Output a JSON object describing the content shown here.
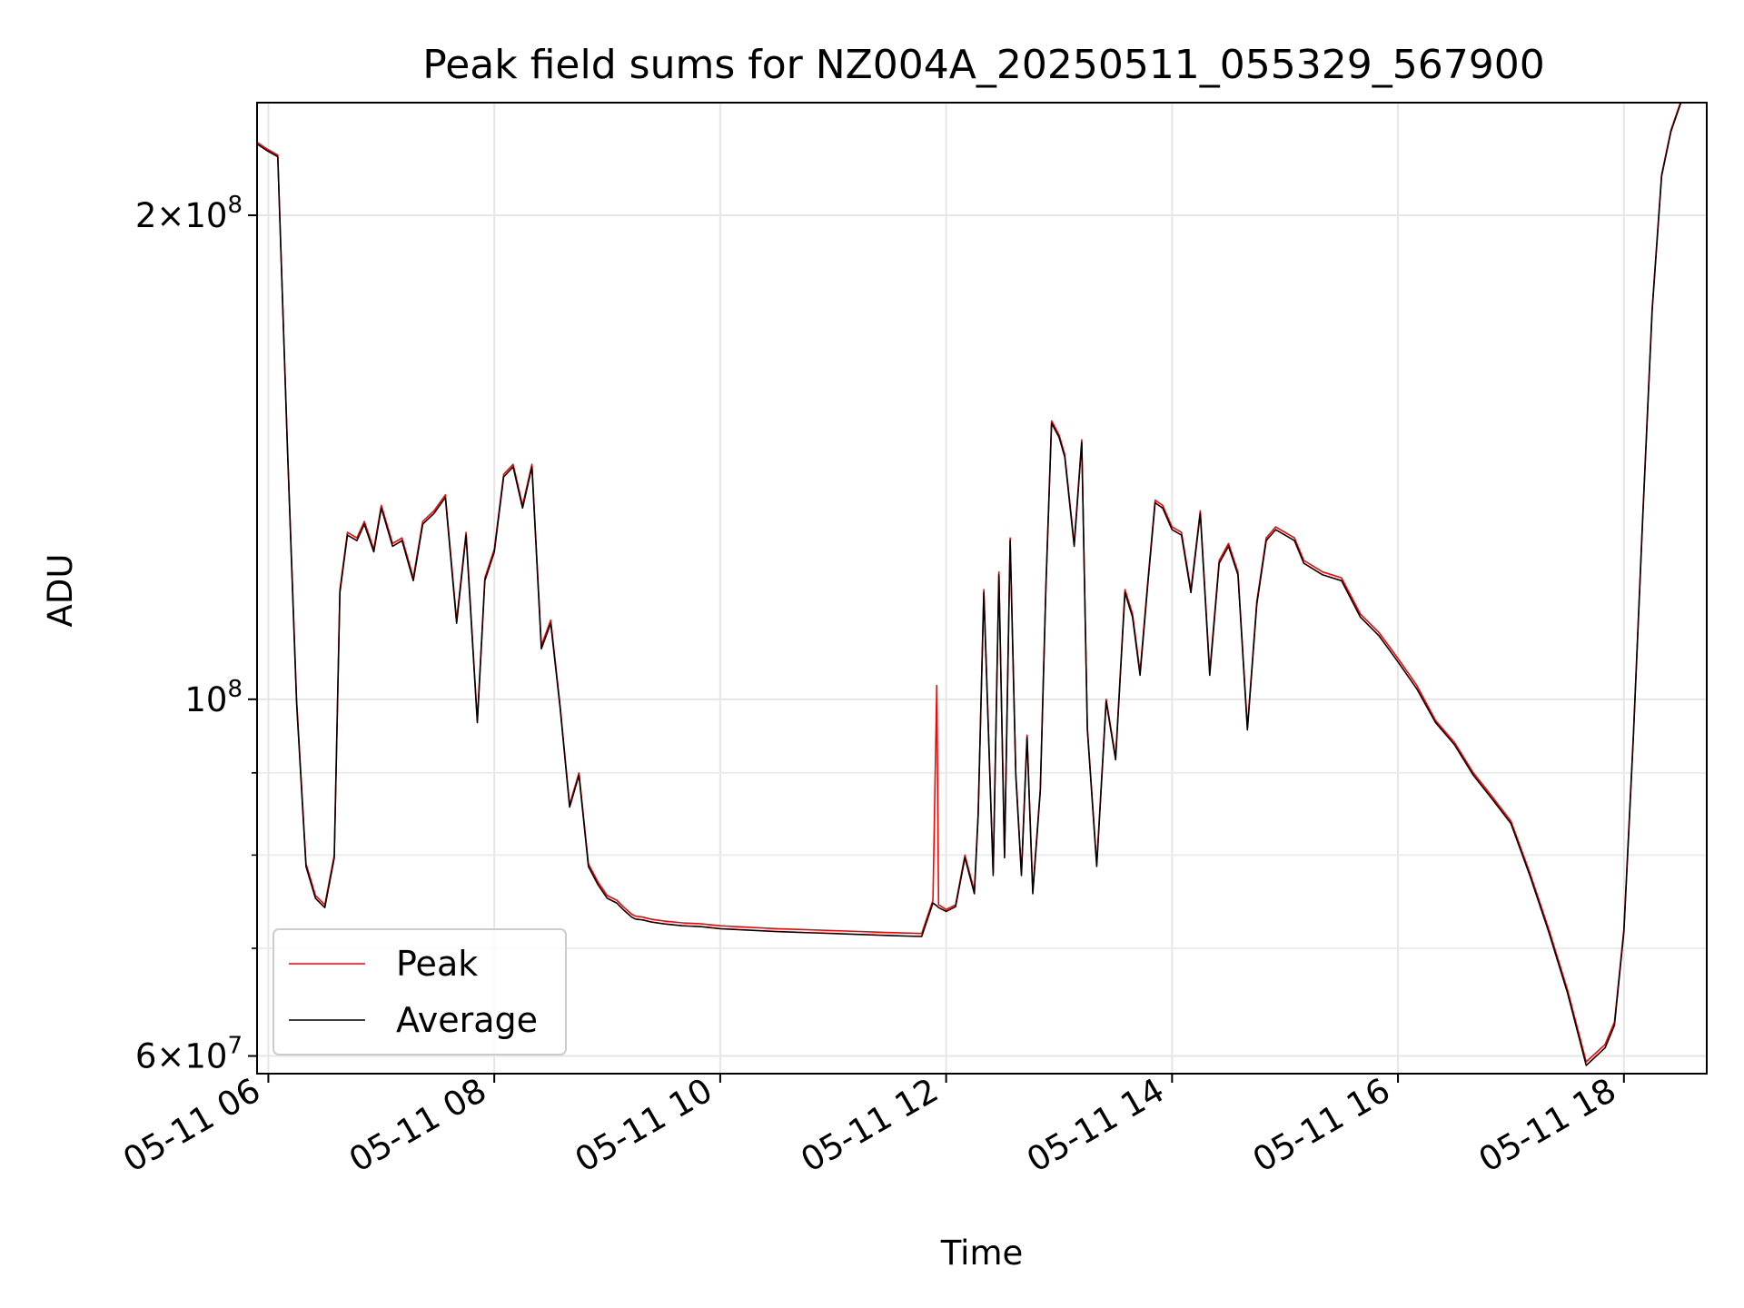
{
  "chart_data": {
    "type": "line",
    "title": "Peak field sums for NZ004A_20250511_055329_567900",
    "xlabel": "Time",
    "ylabel": "ADU",
    "yscale": "log",
    "grid": true,
    "legend_position": "lower-left",
    "xlim": [
      "2025-05-11 05:54",
      "2025-05-11 18:44"
    ],
    "ylim": [
      58500000,
      235000000
    ],
    "x_ticks": [
      "05-11 06",
      "05-11 08",
      "05-11 10",
      "05-11 12",
      "05-11 14",
      "05-11 16",
      "05-11 18"
    ],
    "y_major_ticks": [
      {
        "value": 60000000,
        "base": "6",
        "exp": "7"
      },
      {
        "value": 100000000,
        "base": "",
        "exp": "8"
      },
      {
        "value": 200000000,
        "base": "2",
        "exp": "8"
      }
    ],
    "y_minor_ticks": [
      70000000,
      80000000,
      90000000
    ],
    "series": [
      {
        "name": "Peak",
        "color": "#ff0000",
        "x": [
          "05:54",
          "05:59",
          "06:05",
          "06:10",
          "06:15",
          "06:20",
          "06:25",
          "06:30",
          "06:35",
          "06:38",
          "06:42",
          "06:47",
          "06:51",
          "06:56",
          "07:00",
          "07:06",
          "07:11",
          "07:17",
          "07:22",
          "07:28",
          "07:34",
          "07:40",
          "07:45",
          "07:51",
          "07:55",
          "08:00",
          "08:05",
          "08:10",
          "08:15",
          "08:20",
          "08:25",
          "08:30",
          "08:35",
          "08:40",
          "08:45",
          "08:50",
          "08:55",
          "09:00",
          "09:05",
          "09:09",
          "09:13",
          "09:15",
          "09:19",
          "09:23",
          "09:30",
          "09:40",
          "09:50",
          "10:00",
          "10:30",
          "11:00",
          "11:30",
          "11:47",
          "11:53",
          "11:55",
          "11:56",
          "12:00",
          "12:05",
          "12:10",
          "12:15",
          "12:17",
          "12:20",
          "12:25",
          "12:28",
          "12:31",
          "12:34",
          "12:37",
          "12:40",
          "12:43",
          "12:46",
          "12:50",
          "12:53",
          "12:56",
          "13:00",
          "13:03",
          "13:08",
          "13:12",
          "13:15",
          "13:20",
          "13:25",
          "13:30",
          "13:35",
          "13:39",
          "13:43",
          "13:47",
          "13:51",
          "13:55",
          "14:00",
          "14:05",
          "14:10",
          "14:15",
          "14:20",
          "14:25",
          "14:30",
          "14:35",
          "14:40",
          "14:45",
          "14:50",
          "14:55",
          "15:00",
          "15:05",
          "15:10",
          "15:20",
          "15:30",
          "15:40",
          "15:50",
          "16:00",
          "16:05",
          "16:10",
          "16:20",
          "16:30",
          "16:40",
          "16:50",
          "17:00",
          "17:10",
          "17:20",
          "17:30",
          "17:40",
          "17:50",
          "17:55",
          "18:00",
          "18:05",
          "18:10",
          "18:15",
          "18:20",
          "18:25",
          "18:30",
          "18:35",
          "18:40",
          "18:44"
        ],
        "y": [
          222000000,
          220000000,
          218000000,
          145000000,
          100000000,
          79000000,
          75500000,
          74500000,
          80000000,
          117000000,
          127000000,
          126000000,
          129000000,
          124000000,
          132000000,
          125000000,
          126000000,
          119000000,
          129000000,
          131000000,
          134000000,
          112000000,
          127000000,
          97000000,
          119000000,
          124000000,
          138000000,
          140000000,
          132000000,
          140000000,
          108000000,
          112000000,
          99000000,
          86000000,
          90000000,
          79000000,
          77000000,
          75500000,
          75000000,
          74200000,
          73500000,
          73300000,
          73200000,
          73000000,
          72800000,
          72600000,
          72500000,
          72300000,
          72000000,
          71800000,
          71600000,
          71500000,
          75000000,
          102000000,
          74500000,
          74000000,
          74500000,
          80000000,
          76000000,
          85000000,
          117000000,
          78000000,
          120000000,
          80000000,
          126000000,
          90000000,
          78000000,
          95000000,
          76000000,
          88000000,
          118000000,
          149000000,
          146000000,
          142000000,
          125000000,
          145000000,
          96000000,
          79000000,
          100000000,
          92000000,
          117000000,
          113000000,
          104000000,
          118000000,
          133000000,
          132000000,
          128000000,
          127000000,
          117000000,
          131000000,
          104000000,
          122000000,
          125000000,
          120000000,
          96000000,
          115000000,
          126000000,
          128000000,
          127000000,
          126000000,
          122000000,
          120000000,
          119000000,
          113000000,
          110000000,
          106000000,
          104000000,
          102000000,
          97000000,
          94000000,
          90000000,
          87000000,
          84000000,
          78000000,
          72000000,
          66000000,
          59500000,
          61000000,
          63000000,
          72000000,
          95000000,
          130000000,
          175000000,
          212000000,
          226000000,
          235000000,
          240000000,
          242000000,
          243000000
        ]
      },
      {
        "name": "Average",
        "color": "#000000",
        "x": [
          "05:54",
          "05:59",
          "06:05",
          "06:10",
          "06:15",
          "06:20",
          "06:25",
          "06:30",
          "06:35",
          "06:38",
          "06:42",
          "06:47",
          "06:51",
          "06:56",
          "07:00",
          "07:06",
          "07:11",
          "07:17",
          "07:22",
          "07:28",
          "07:34",
          "07:40",
          "07:45",
          "07:51",
          "07:55",
          "08:00",
          "08:05",
          "08:10",
          "08:15",
          "08:20",
          "08:25",
          "08:30",
          "08:35",
          "08:40",
          "08:45",
          "08:50",
          "08:55",
          "09:00",
          "09:05",
          "09:09",
          "09:13",
          "09:15",
          "09:19",
          "09:23",
          "09:30",
          "09:40",
          "09:50",
          "10:00",
          "10:30",
          "11:00",
          "11:30",
          "11:47",
          "11:53",
          "11:55",
          "11:56",
          "12:00",
          "12:05",
          "12:10",
          "12:15",
          "12:17",
          "12:20",
          "12:25",
          "12:28",
          "12:31",
          "12:34",
          "12:37",
          "12:40",
          "12:43",
          "12:46",
          "12:50",
          "12:53",
          "12:56",
          "13:00",
          "13:03",
          "13:08",
          "13:12",
          "13:15",
          "13:20",
          "13:25",
          "13:30",
          "13:35",
          "13:39",
          "13:43",
          "13:47",
          "13:51",
          "13:55",
          "14:00",
          "14:05",
          "14:10",
          "14:15",
          "14:20",
          "14:25",
          "14:30",
          "14:35",
          "14:40",
          "14:45",
          "14:50",
          "14:55",
          "15:00",
          "15:05",
          "15:10",
          "15:20",
          "15:30",
          "15:40",
          "15:50",
          "16:00",
          "16:05",
          "16:10",
          "16:20",
          "16:30",
          "16:40",
          "16:50",
          "17:00",
          "17:10",
          "17:20",
          "17:30",
          "17:40",
          "17:50",
          "17:55",
          "18:00",
          "18:05",
          "18:10",
          "18:15",
          "18:20",
          "18:25",
          "18:30",
          "18:35",
          "18:40",
          "18:44"
        ],
        "y": [
          221500000,
          219500000,
          217500000,
          144500000,
          99500000,
          78700000,
          75200000,
          74200000,
          79700000,
          116500000,
          126500000,
          125500000,
          128500000,
          123500000,
          131500000,
          124500000,
          125500000,
          118500000,
          128500000,
          130500000,
          133500000,
          111500000,
          126500000,
          96700000,
          118500000,
          123500000,
          137500000,
          139500000,
          131500000,
          139500000,
          107500000,
          111500000,
          98700000,
          85700000,
          89700000,
          78700000,
          76700000,
          75200000,
          74700000,
          73900000,
          73200000,
          73000000,
          72900000,
          72700000,
          72500000,
          72300000,
          72200000,
          72000000,
          71700000,
          71500000,
          71300000,
          71200000,
          74700000,
          74400000,
          74200000,
          73800000,
          74300000,
          79700000,
          75700000,
          84700000,
          116500000,
          77700000,
          119500000,
          79700000,
          125500000,
          89700000,
          77700000,
          94700000,
          75700000,
          87700000,
          117500000,
          148500000,
          145500000,
          141500000,
          124500000,
          144500000,
          95700000,
          78700000,
          99700000,
          91700000,
          116500000,
          112500000,
          103500000,
          117500000,
          132500000,
          131500000,
          127500000,
          126500000,
          116500000,
          130500000,
          103500000,
          121500000,
          124500000,
          119500000,
          95700000,
          114500000,
          125500000,
          127500000,
          126500000,
          125500000,
          121500000,
          119500000,
          118500000,
          112500000,
          109500000,
          105500000,
          103500000,
          101500000,
          96700000,
          93700000,
          89700000,
          86700000,
          83700000,
          77700000,
          71700000,
          65700000,
          59200000,
          60700000,
          62700000,
          71700000,
          94700000,
          129500000,
          174500000,
          211500000,
          225500000,
          234500000,
          239500000,
          241500000,
          242500000
        ]
      }
    ]
  }
}
